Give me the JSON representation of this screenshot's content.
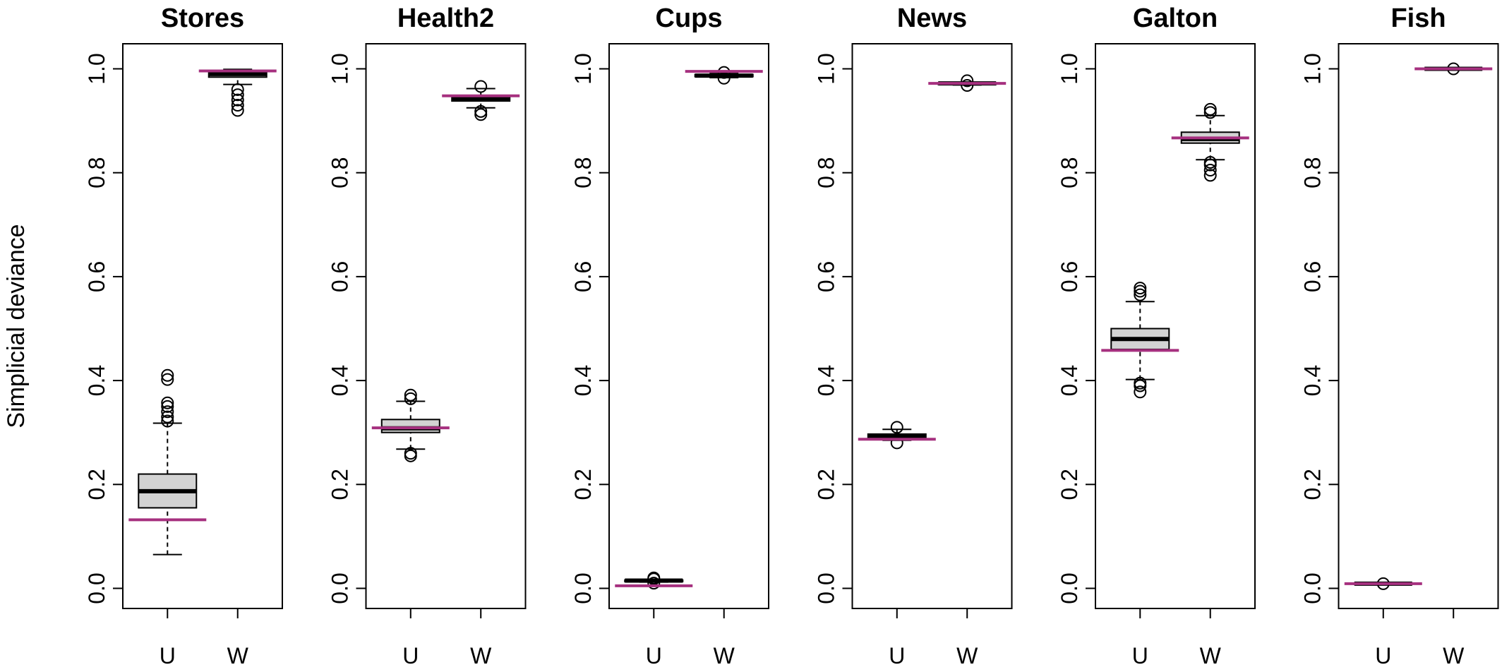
{
  "chart_data": {
    "type": "boxplot",
    "ylabel": "Simplicial deviance",
    "ylim": [
      0,
      1
    ],
    "yticks": [
      "0.0",
      "0.2",
      "0.4",
      "0.6",
      "0.8",
      "1.0"
    ],
    "categories": [
      "U",
      "W"
    ],
    "colors": {
      "box_fill": "#d3d3d3",
      "reference_line": "#a6307f",
      "stroke": "#000000"
    },
    "panels": [
      {
        "title": "Stores",
        "boxes": [
          {
            "category": "U",
            "whisker_low": 0.065,
            "q1": 0.155,
            "median": 0.187,
            "q3": 0.22,
            "whisker_high": 0.318,
            "outliers": [
              0.322,
              0.33,
              0.34,
              0.35,
              0.357,
              0.402,
              0.41
            ],
            "reference": 0.132
          },
          {
            "category": "W",
            "whisker_low": 0.97,
            "q1": 0.984,
            "median": 0.99,
            "q3": 0.995,
            "whisker_high": 0.999,
            "outliers": [
              0.92,
              0.93,
              0.94,
              0.95,
              0.96
            ],
            "reference": 0.996
          }
        ]
      },
      {
        "title": "Health2",
        "boxes": [
          {
            "category": "U",
            "whisker_low": 0.268,
            "q1": 0.3,
            "median": 0.308,
            "q3": 0.325,
            "whisker_high": 0.36,
            "outliers": [
              0.255,
              0.26,
              0.365,
              0.372
            ],
            "reference": 0.309
          },
          {
            "category": "W",
            "whisker_low": 0.925,
            "q1": 0.938,
            "median": 0.942,
            "q3": 0.948,
            "whisker_high": 0.962,
            "outliers": [
              0.912,
              0.918,
              0.966
            ],
            "reference": 0.948
          }
        ]
      },
      {
        "title": "Cups",
        "boxes": [
          {
            "category": "U",
            "whisker_low": 0.012,
            "q1": 0.013,
            "median": 0.015,
            "q3": 0.016,
            "whisker_high": 0.017,
            "outliers": [
              0.01,
              0.018,
              0.02
            ],
            "reference": 0.005
          },
          {
            "category": "W",
            "whisker_low": 0.983,
            "q1": 0.985,
            "median": 0.987,
            "q3": 0.989,
            "whisker_high": 0.991,
            "outliers": [
              0.982,
              0.993
            ],
            "reference": 0.995
          }
        ]
      },
      {
        "title": "News",
        "boxes": [
          {
            "category": "U",
            "whisker_low": 0.285,
            "q1": 0.288,
            "median": 0.293,
            "q3": 0.297,
            "whisker_high": 0.306,
            "outliers": [
              0.28,
              0.31
            ],
            "reference": 0.287
          },
          {
            "category": "W",
            "whisker_low": 0.969,
            "q1": 0.97,
            "median": 0.972,
            "q3": 0.973,
            "whisker_high": 0.974,
            "outliers": [
              0.968,
              0.977
            ],
            "reference": 0.972
          }
        ]
      },
      {
        "title": "Galton",
        "boxes": [
          {
            "category": "U",
            "whisker_low": 0.402,
            "q1": 0.46,
            "median": 0.48,
            "q3": 0.5,
            "whisker_high": 0.552,
            "outliers": [
              0.378,
              0.39,
              0.395,
              0.565,
              0.572,
              0.578
            ],
            "reference": 0.458
          },
          {
            "category": "W",
            "whisker_low": 0.825,
            "q1": 0.857,
            "median": 0.865,
            "q3": 0.878,
            "whisker_high": 0.91,
            "outliers": [
              0.795,
              0.805,
              0.815,
              0.82,
              0.916,
              0.922
            ],
            "reference": 0.867
          }
        ]
      },
      {
        "title": "Fish",
        "boxes": [
          {
            "category": "U",
            "whisker_low": 0.007,
            "q1": 0.008,
            "median": 0.009,
            "q3": 0.01,
            "whisker_high": 0.011,
            "outliers": [
              0.009
            ],
            "reference": 0.009
          },
          {
            "category": "W",
            "whisker_low": 0.998,
            "q1": 0.999,
            "median": 1.0,
            "q3": 1.0,
            "whisker_high": 1.0,
            "outliers": [
              1.0
            ],
            "reference": 1.0
          }
        ]
      }
    ]
  }
}
